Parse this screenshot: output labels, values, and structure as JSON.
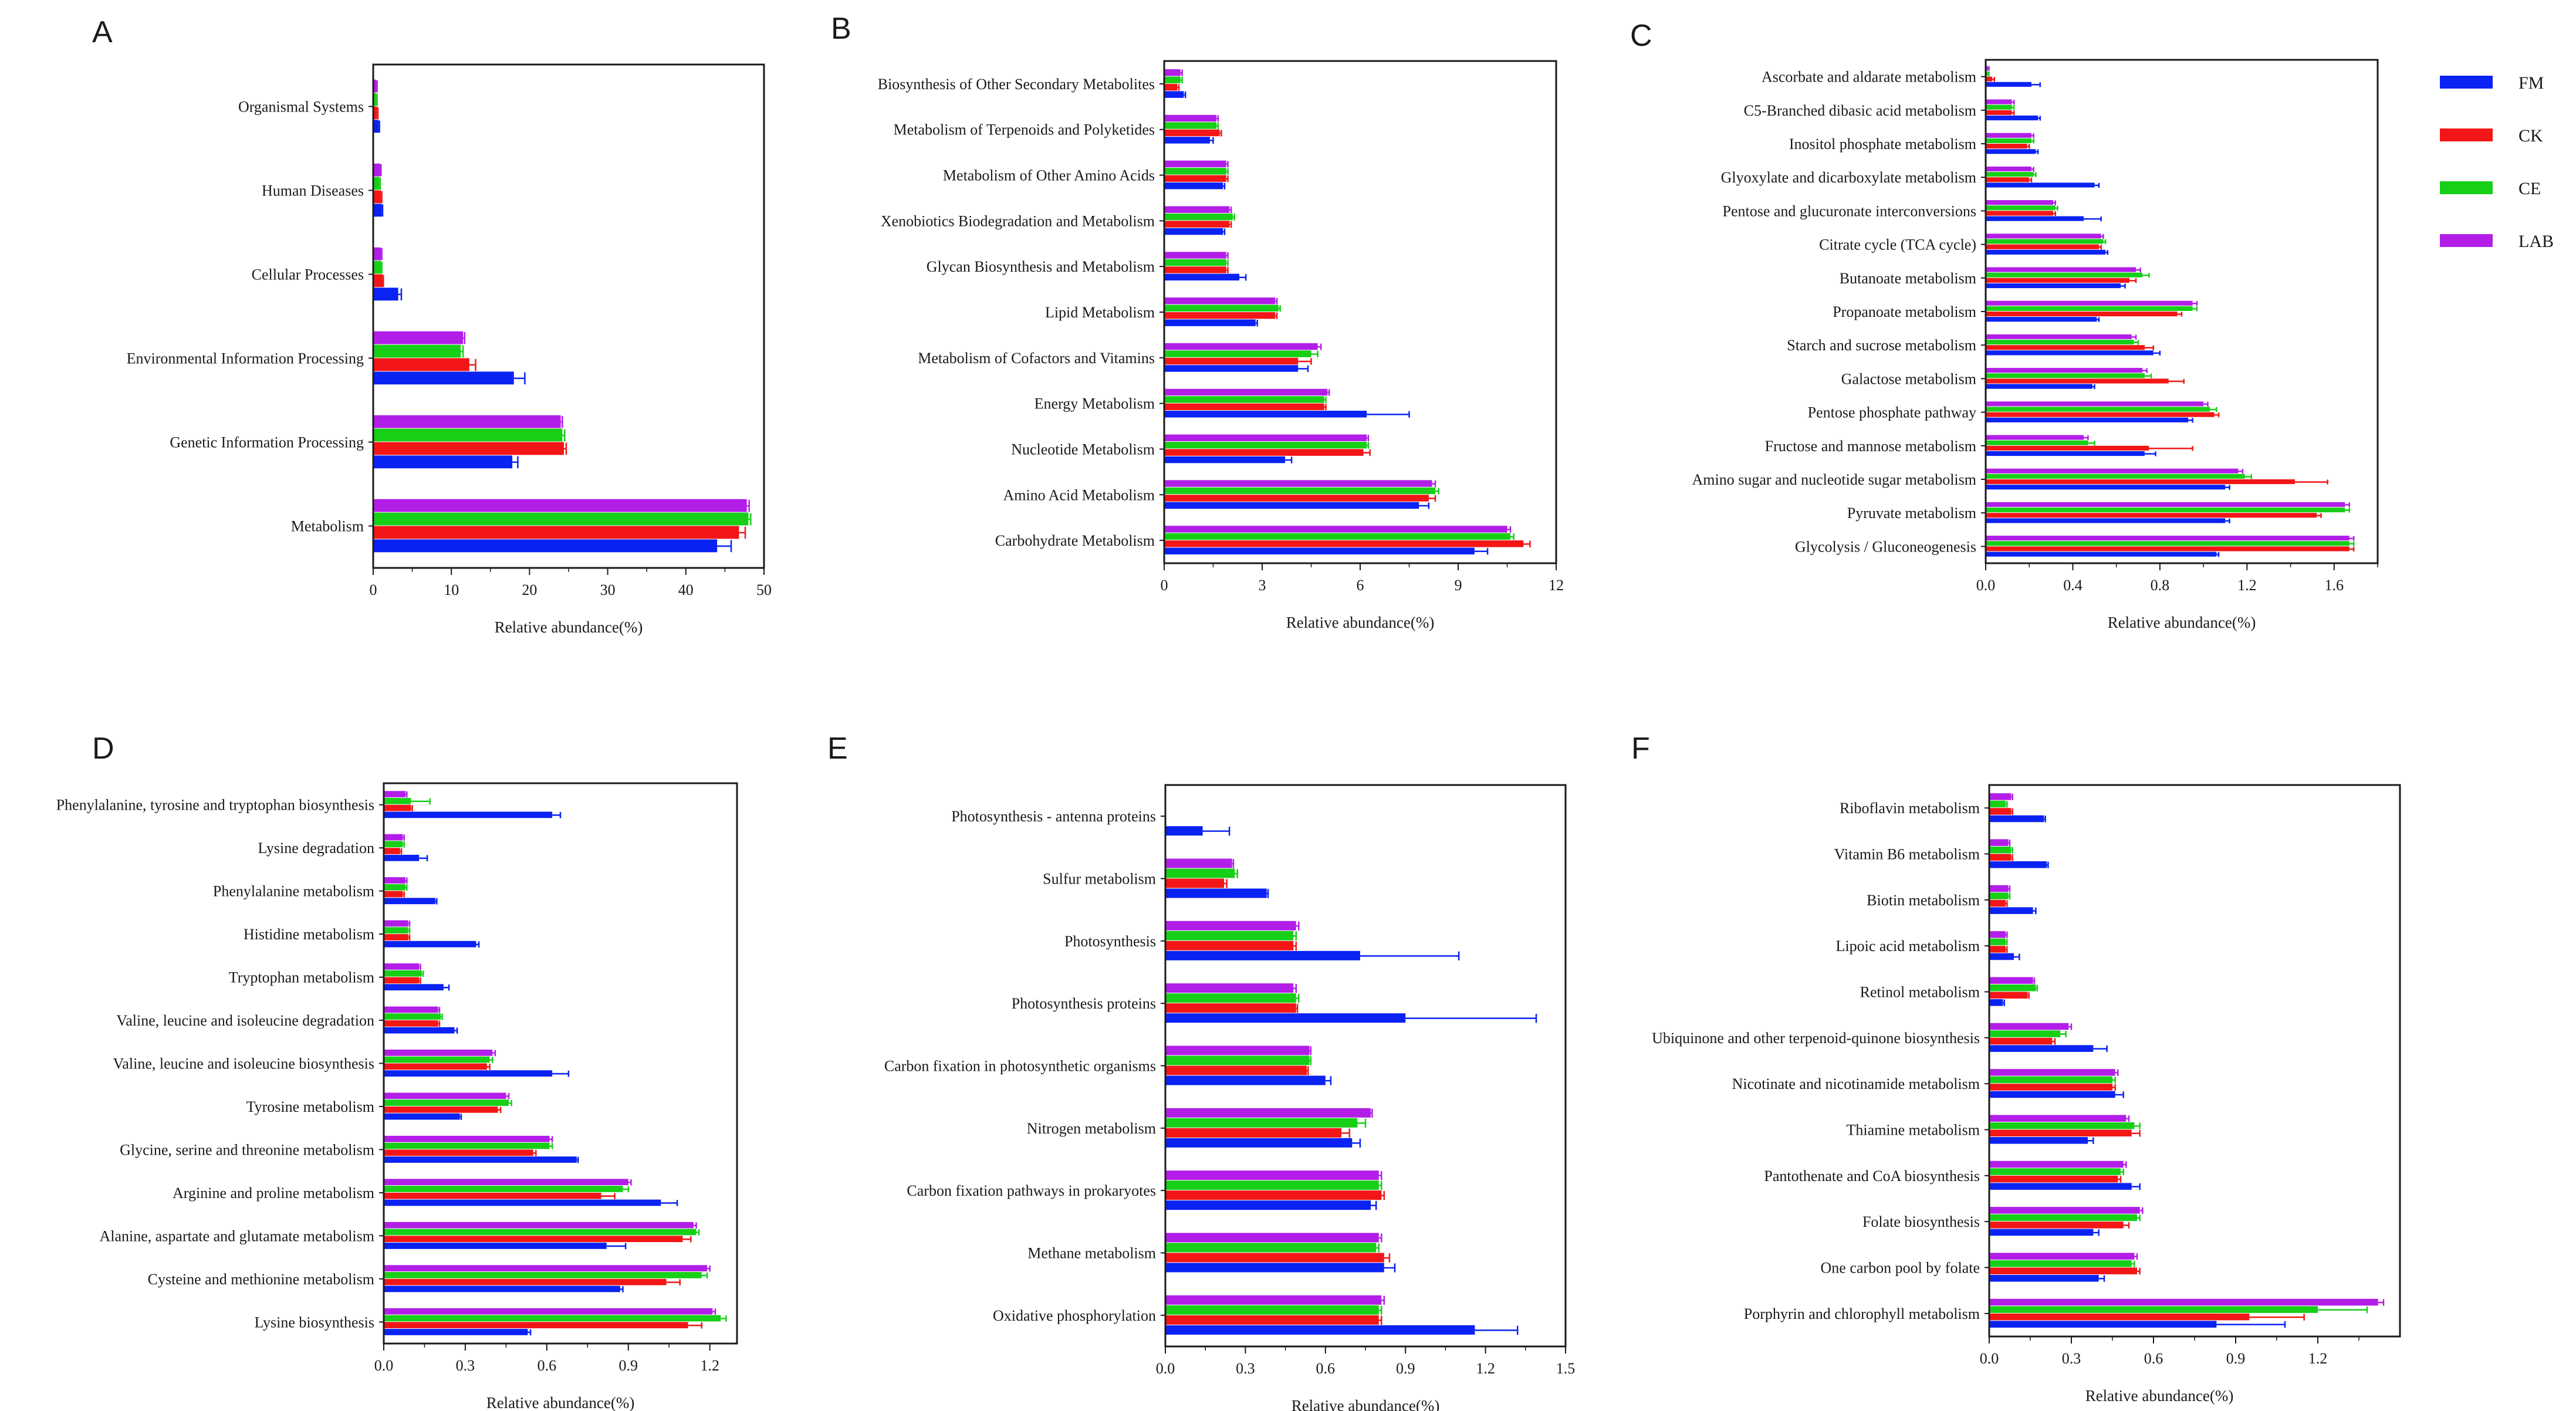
{
  "legend": [
    {
      "name": "FM",
      "color": "#0a22f2"
    },
    {
      "name": "CK",
      "color": "#f21616"
    },
    {
      "name": "CE",
      "color": "#17cf17"
    },
    {
      "name": "LAB",
      "color": "#b21ee8"
    }
  ],
  "chart_data": [
    {
      "panel": "A",
      "type": "bar",
      "orientation": "horizontal",
      "xlabel": "Relative abundance(%)",
      "xlim": [
        0,
        50
      ],
      "ticks": [
        0,
        10,
        20,
        30,
        40,
        50
      ],
      "categories": [
        "Organismal Systems",
        "Human Diseases",
        "Cellular Processes",
        "Environmental Information Processing",
        "Genetic Information Processing",
        "Metabolism"
      ],
      "series": [
        {
          "name": "LAB",
          "values": [
            0.4,
            0.9,
            1.0,
            11.5,
            24.0,
            47.8
          ],
          "errors": [
            0.1,
            0.1,
            0.1,
            0.2,
            0.2,
            0.3
          ]
        },
        {
          "name": "CE",
          "values": [
            0.4,
            0.8,
            1.0,
            11.2,
            24.2,
            48.0
          ],
          "errors": [
            0.1,
            0.1,
            0.1,
            0.3,
            0.3,
            0.3
          ]
        },
        {
          "name": "CK",
          "values": [
            0.5,
            1.0,
            1.2,
            12.3,
            24.4,
            46.8
          ],
          "errors": [
            0.1,
            0.1,
            0.1,
            0.8,
            0.3,
            0.8
          ]
        },
        {
          "name": "FM",
          "values": [
            0.7,
            1.1,
            3.2,
            18.0,
            17.8,
            44.0
          ],
          "errors": [
            0.1,
            0.1,
            0.4,
            1.4,
            0.7,
            1.8
          ]
        }
      ]
    },
    {
      "panel": "B",
      "type": "bar",
      "orientation": "horizontal",
      "xlabel": "Relative abundance(%)",
      "xlim": [
        0,
        12
      ],
      "ticks": [
        0,
        3,
        6,
        9,
        12
      ],
      "categories": [
        "Biosynthesis of Other Secondary Metabolites",
        "Metabolism of Terpenoids and Polyketides",
        "Metabolism of Other Amino Acids",
        "Xenobiotics Biodegradation and Metabolism",
        "Glycan Biosynthesis and Metabolism",
        "Lipid Metabolism",
        "Metabolism of Cofactors and Vitamins",
        "Energy Metabolism",
        "Nucleotide Metabolism",
        "Amino Acid Metabolism",
        "Carbohydrate Metabolism"
      ],
      "series": [
        {
          "name": "LAB",
          "values": [
            0.5,
            1.6,
            1.9,
            2.0,
            1.9,
            3.4,
            4.7,
            5.0,
            6.2,
            8.2,
            10.5
          ],
          "errors": [
            0.05,
            0.05,
            0.05,
            0.05,
            0.05,
            0.05,
            0.1,
            0.05,
            0.05,
            0.1,
            0.1
          ]
        },
        {
          "name": "CE",
          "values": [
            0.5,
            1.6,
            1.9,
            2.1,
            1.9,
            3.5,
            4.5,
            4.9,
            6.2,
            8.3,
            10.6
          ],
          "errors": [
            0.05,
            0.05,
            0.05,
            0.05,
            0.05,
            0.05,
            0.2,
            0.05,
            0.05,
            0.1,
            0.1
          ]
        },
        {
          "name": "CK",
          "values": [
            0.4,
            1.7,
            1.9,
            2.0,
            1.9,
            3.4,
            4.1,
            4.9,
            6.1,
            8.1,
            11.0
          ],
          "errors": [
            0.05,
            0.05,
            0.05,
            0.05,
            0.05,
            0.05,
            0.4,
            0.05,
            0.2,
            0.2,
            0.2
          ]
        },
        {
          "name": "FM",
          "values": [
            0.6,
            1.4,
            1.8,
            1.8,
            2.3,
            2.8,
            4.1,
            6.2,
            3.7,
            7.8,
            9.5
          ],
          "errors": [
            0.05,
            0.1,
            0.05,
            0.05,
            0.2,
            0.05,
            0.3,
            1.3,
            0.2,
            0.3,
            0.4
          ]
        }
      ]
    },
    {
      "panel": "C",
      "type": "bar",
      "orientation": "horizontal",
      "xlabel": "Relative abundance(%)",
      "xlim": [
        0,
        1.8
      ],
      "ticks": [
        0.0,
        0.4,
        0.8,
        1.2,
        1.6
      ],
      "categories": [
        "Ascorbate and aldarate metabolism",
        "C5-Branched dibasic acid metabolism",
        "Inositol phosphate metabolism",
        "Glyoxylate and dicarboxylate metabolism",
        "Pentose and glucuronate interconversions",
        "Citrate cycle (TCA cycle)",
        "Butanoate metabolism",
        "Propanoate metabolism",
        "Starch and sucrose metabolism",
        "Galactose metabolism",
        "Pentose phosphate pathway",
        "Fructose and mannose metabolism",
        "Amino sugar and nucleotide sugar metabolism",
        "Pyruvate metabolism",
        "Glycolysis / Gluconeogenesis"
      ],
      "series": [
        {
          "name": "LAB",
          "values": [
            0.01,
            0.12,
            0.21,
            0.21,
            0.31,
            0.53,
            0.69,
            0.95,
            0.67,
            0.72,
            1.0,
            0.45,
            1.16,
            1.65,
            1.67
          ],
          "errors": [
            0.005,
            0.01,
            0.01,
            0.01,
            0.01,
            0.01,
            0.02,
            0.02,
            0.02,
            0.02,
            0.02,
            0.02,
            0.02,
            0.02,
            0.02
          ]
        },
        {
          "name": "CE",
          "values": [
            0.01,
            0.12,
            0.21,
            0.22,
            0.32,
            0.54,
            0.72,
            0.95,
            0.68,
            0.73,
            1.03,
            0.47,
            1.19,
            1.65,
            1.67
          ],
          "errors": [
            0.005,
            0.01,
            0.01,
            0.01,
            0.01,
            0.01,
            0.03,
            0.02,
            0.02,
            0.03,
            0.03,
            0.03,
            0.03,
            0.02,
            0.02
          ]
        },
        {
          "name": "CK",
          "values": [
            0.03,
            0.12,
            0.19,
            0.2,
            0.31,
            0.52,
            0.66,
            0.88,
            0.73,
            0.84,
            1.05,
            0.75,
            1.42,
            1.52,
            1.67
          ],
          "errors": [
            0.01,
            0.01,
            0.01,
            0.01,
            0.01,
            0.01,
            0.03,
            0.02,
            0.04,
            0.07,
            0.02,
            0.2,
            0.15,
            0.02,
            0.02
          ]
        },
        {
          "name": "FM",
          "values": [
            0.21,
            0.24,
            0.23,
            0.5,
            0.45,
            0.55,
            0.62,
            0.51,
            0.77,
            0.49,
            0.93,
            0.73,
            1.1,
            1.1,
            1.06
          ],
          "errors": [
            0.04,
            0.01,
            0.01,
            0.02,
            0.08,
            0.01,
            0.02,
            0.01,
            0.03,
            0.01,
            0.02,
            0.05,
            0.02,
            0.02,
            0.01
          ]
        }
      ]
    },
    {
      "panel": "D",
      "type": "bar",
      "orientation": "horizontal",
      "xlabel": "Relative abundance(%)",
      "xlim": [
        0,
        1.3
      ],
      "ticks": [
        0.0,
        0.3,
        0.6,
        0.9,
        1.2
      ],
      "categories": [
        "Phenylalanine, tyrosine and tryptophan biosynthesis",
        "Lysine degradation",
        "Phenylalanine metabolism",
        "Histidine metabolism",
        "Tryptophan metabolism",
        "Valine, leucine and isoleucine degradation",
        "Valine, leucine and isoleucine biosynthesis",
        "Tyrosine metabolism",
        "Glycine, serine and threonine metabolism",
        "Arginine and proline metabolism",
        "Alanine, aspartate and glutamate metabolism",
        "Cysteine and methionine metabolism",
        "Lysine biosynthesis"
      ],
      "series": [
        {
          "name": "LAB",
          "values": [
            0.08,
            0.07,
            0.08,
            0.09,
            0.13,
            0.2,
            0.4,
            0.45,
            0.61,
            0.9,
            1.14,
            1.19,
            1.21
          ],
          "errors": [
            0.005,
            0.005,
            0.005,
            0.005,
            0.005,
            0.005,
            0.01,
            0.01,
            0.01,
            0.01,
            0.01,
            0.01,
            0.01
          ]
        },
        {
          "name": "CE",
          "values": [
            0.1,
            0.07,
            0.08,
            0.09,
            0.14,
            0.21,
            0.39,
            0.46,
            0.61,
            0.88,
            1.15,
            1.17,
            1.24
          ],
          "errors": [
            0.07,
            0.005,
            0.005,
            0.005,
            0.005,
            0.005,
            0.01,
            0.01,
            0.01,
            0.02,
            0.01,
            0.02,
            0.02
          ]
        },
        {
          "name": "CK",
          "values": [
            0.1,
            0.06,
            0.07,
            0.09,
            0.13,
            0.2,
            0.38,
            0.42,
            0.55,
            0.8,
            1.1,
            1.04,
            1.12
          ],
          "errors": [
            0.005,
            0.005,
            0.005,
            0.005,
            0.005,
            0.005,
            0.01,
            0.01,
            0.01,
            0.05,
            0.03,
            0.05,
            0.05
          ]
        },
        {
          "name": "FM",
          "values": [
            0.62,
            0.13,
            0.19,
            0.34,
            0.22,
            0.26,
            0.62,
            0.28,
            0.71,
            1.02,
            0.82,
            0.87,
            0.53
          ],
          "errors": [
            0.03,
            0.03,
            0.005,
            0.01,
            0.02,
            0.01,
            0.06,
            0.005,
            0.005,
            0.06,
            0.07,
            0.01,
            0.01
          ]
        }
      ]
    },
    {
      "panel": "E",
      "type": "bar",
      "orientation": "horizontal",
      "xlabel": "Relative abundance(%)",
      "xlim": [
        0,
        1.5
      ],
      "ticks": [
        0.0,
        0.3,
        0.6,
        0.9,
        1.2,
        1.5
      ],
      "categories": [
        "Photosynthesis - antenna proteins",
        "Sulfur metabolism",
        "Photosynthesis",
        "Photosynthesis proteins",
        "Carbon fixation in photosynthetic organisms",
        "Nitrogen metabolism",
        "Carbon fixation pathways in prokaryotes",
        "Methane metabolism",
        "Oxidative phosphorylation"
      ],
      "series": [
        {
          "name": "LAB",
          "values": [
            0.0,
            0.25,
            0.49,
            0.48,
            0.54,
            0.77,
            0.8,
            0.8,
            0.81
          ],
          "errors": [
            0.0,
            0.005,
            0.01,
            0.01,
            0.005,
            0.005,
            0.01,
            0.01,
            0.01
          ]
        },
        {
          "name": "CE",
          "values": [
            0.0,
            0.26,
            0.48,
            0.49,
            0.54,
            0.72,
            0.8,
            0.79,
            0.8
          ],
          "errors": [
            0.0,
            0.01,
            0.01,
            0.01,
            0.005,
            0.03,
            0.01,
            0.01,
            0.01
          ]
        },
        {
          "name": "CK",
          "values": [
            0.0,
            0.22,
            0.48,
            0.49,
            0.53,
            0.66,
            0.81,
            0.82,
            0.8
          ],
          "errors": [
            0.0,
            0.01,
            0.01,
            0.005,
            0.005,
            0.03,
            0.01,
            0.02,
            0.01
          ]
        },
        {
          "name": "FM",
          "values": [
            0.14,
            0.38,
            0.73,
            0.9,
            0.6,
            0.7,
            0.77,
            0.82,
            1.16
          ],
          "errors": [
            0.1,
            0.005,
            0.37,
            0.49,
            0.02,
            0.03,
            0.02,
            0.04,
            0.16
          ]
        }
      ]
    },
    {
      "panel": "F",
      "type": "bar",
      "orientation": "horizontal",
      "xlabel": "Relative abundance(%)",
      "xlim": [
        0,
        1.5
      ],
      "ticks": [
        0.0,
        0.3,
        0.6,
        0.9,
        1.2
      ],
      "categories": [
        "Riboflavin metabolism",
        "Vitamin B6 metabolism",
        "Biotin metabolism",
        "Lipoic acid metabolism",
        "Retinol metabolism",
        "Ubiquinone and other terpenoid-quinone biosynthesis",
        "Nicotinate and nicotinamide metabolism",
        "Thiamine metabolism",
        "Pantothenate and CoA biosynthesis",
        "Folate biosynthesis",
        "One carbon pool by folate",
        "Porphyrin and chlorophyll metabolism"
      ],
      "series": [
        {
          "name": "LAB",
          "values": [
            0.08,
            0.07,
            0.07,
            0.06,
            0.16,
            0.29,
            0.46,
            0.5,
            0.49,
            0.55,
            0.53,
            1.42
          ],
          "errors": [
            0.005,
            0.005,
            0.005,
            0.005,
            0.005,
            0.01,
            0.01,
            0.01,
            0.01,
            0.01,
            0.01,
            0.02
          ]
        },
        {
          "name": "CE",
          "values": [
            0.06,
            0.08,
            0.07,
            0.06,
            0.17,
            0.26,
            0.45,
            0.53,
            0.48,
            0.54,
            0.52,
            1.2
          ],
          "errors": [
            0.005,
            0.005,
            0.005,
            0.005,
            0.005,
            0.02,
            0.01,
            0.02,
            0.01,
            0.01,
            0.01,
            0.18
          ]
        },
        {
          "name": "CK",
          "values": [
            0.08,
            0.08,
            0.06,
            0.06,
            0.14,
            0.23,
            0.45,
            0.52,
            0.47,
            0.49,
            0.54,
            0.95
          ],
          "errors": [
            0.005,
            0.005,
            0.005,
            0.005,
            0.005,
            0.01,
            0.01,
            0.03,
            0.01,
            0.02,
            0.01,
            0.2
          ]
        },
        {
          "name": "FM",
          "values": [
            0.2,
            0.21,
            0.16,
            0.09,
            0.05,
            0.38,
            0.46,
            0.36,
            0.52,
            0.38,
            0.4,
            0.83
          ],
          "errors": [
            0.005,
            0.005,
            0.01,
            0.02,
            0.005,
            0.05,
            0.03,
            0.02,
            0.03,
            0.02,
            0.02,
            0.25
          ]
        }
      ]
    }
  ]
}
